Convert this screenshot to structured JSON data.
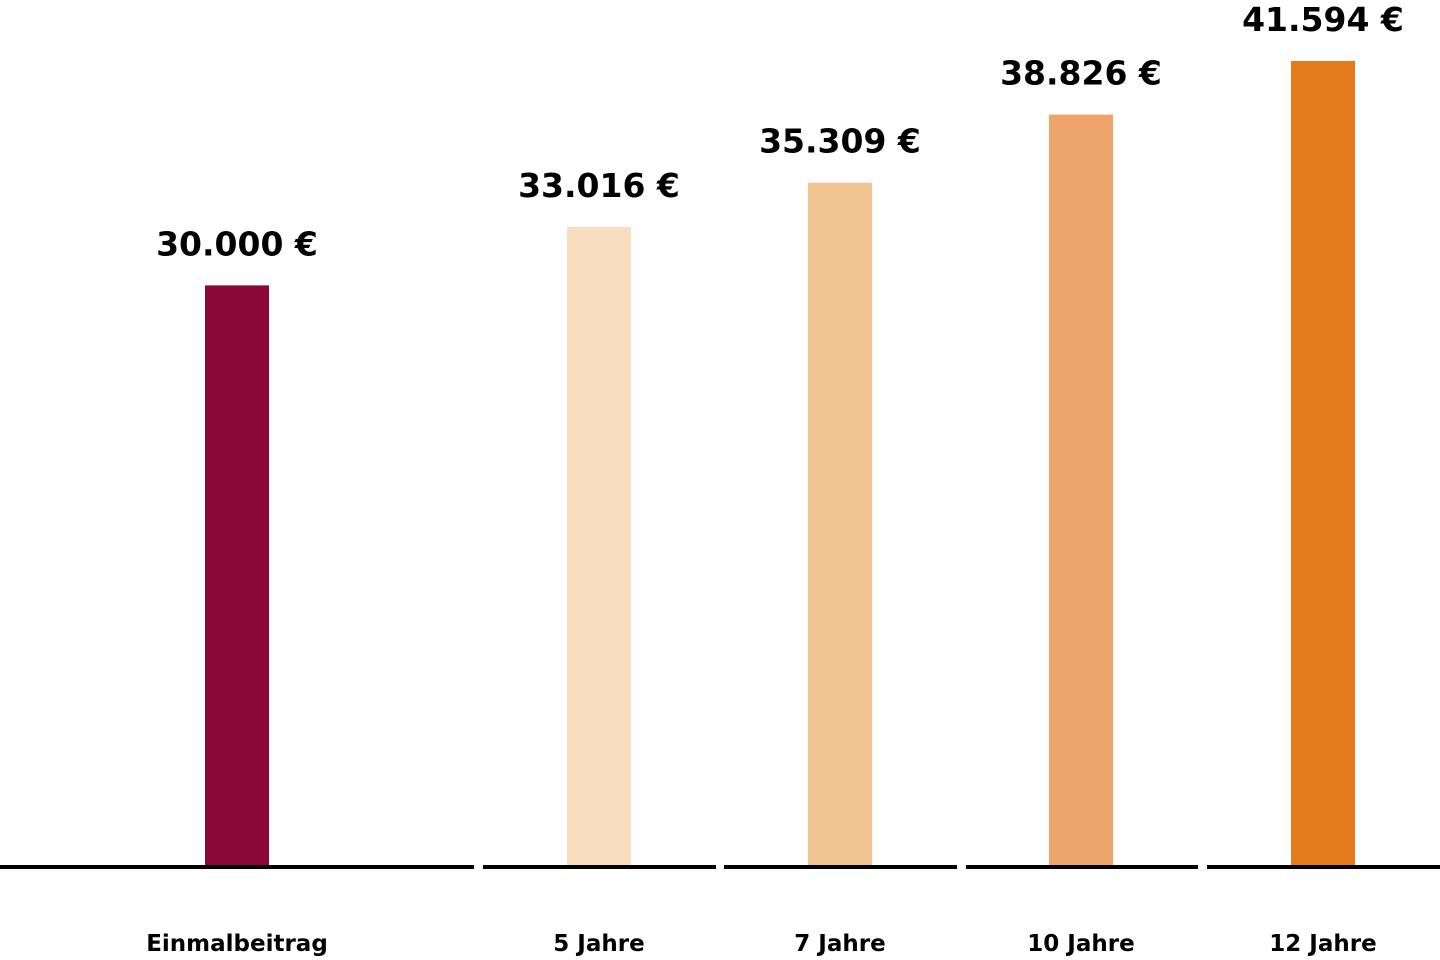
{
  "chart_data": {
    "type": "bar",
    "categories": [
      "Einmalbeitrag",
      "5 Jahre",
      "7 Jahre",
      "10 Jahre",
      "12 Jahre"
    ],
    "values": [
      30000,
      33016,
      35309,
      38826,
      41594
    ],
    "value_labels": [
      "30.000 €",
      "33.016 €",
      "35.309 €",
      "38.826 €",
      "41.594 €"
    ],
    "colors": [
      "#8a0736",
      "#f6debf",
      "#f2c593",
      "#eea56c",
      "#e47c1d"
    ],
    "axis_color": "#000000",
    "title": "",
    "xlabel": "",
    "ylabel": "",
    "ylim": [
      0,
      42000
    ],
    "grid": false
  }
}
